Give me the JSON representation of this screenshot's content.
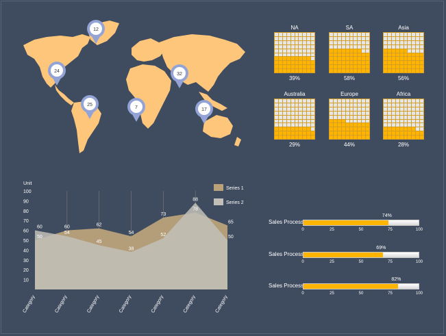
{
  "colors": {
    "background": "#3f4b5e",
    "continent": "#fdc67a",
    "pin": "#93a3d6",
    "waffle_on": "#ffb400",
    "waffle_off": "#e6e6e6",
    "series1": "#b9a27a",
    "series2": "#c2bfb9",
    "gauge_fill": "#ffb400"
  },
  "map": {
    "pins": [
      {
        "region": "north-america",
        "value": "24"
      },
      {
        "region": "greenland",
        "value": "12"
      },
      {
        "region": "south-america",
        "value": "25"
      },
      {
        "region": "africa",
        "value": "7"
      },
      {
        "region": "asia",
        "value": "32"
      },
      {
        "region": "australia",
        "value": "17"
      }
    ]
  },
  "waffles": [
    {
      "label": "NA",
      "percent_text": "39%",
      "fraction": 0.39
    },
    {
      "label": "SA",
      "percent_text": "58%",
      "fraction": 0.58
    },
    {
      "label": "Asia",
      "percent_text": "56%",
      "fraction": 0.56
    },
    {
      "label": "Australia",
      "percent_text": "29%",
      "fraction": 0.29
    },
    {
      "label": "Europe",
      "percent_text": "44%",
      "fraction": 0.44
    },
    {
      "label": "Africa",
      "percent_text": "28%",
      "fraction": 0.28
    }
  ],
  "chart_data": {
    "type": "area",
    "ylabel": "Unit",
    "ylim": [
      0,
      100
    ],
    "yticks": [
      10,
      20,
      30,
      40,
      50,
      60,
      70,
      80,
      90,
      100
    ],
    "categories": [
      "Category",
      "Category",
      "Category",
      "Category",
      "Category",
      "Category",
      "Category"
    ],
    "series": [
      {
        "name": "Series 1",
        "values": [
          50,
          60,
          62,
          54,
          73,
          78,
          65
        ]
      },
      {
        "name": "Series 2",
        "values": [
          60,
          54,
          45,
          38,
          52,
          88,
          50
        ]
      }
    ],
    "legend": "right",
    "grid": false
  },
  "gauges": [
    {
      "label": "Sales Process",
      "percent_text": "74%",
      "fraction": 0.74
    },
    {
      "label": "Sales Process",
      "percent_text": "69%",
      "fraction": 0.69
    },
    {
      "label": "Sales Process",
      "percent_text": "82%",
      "fraction": 0.82
    }
  ],
  "gauge_ticks": [
    "0",
    "25",
    "50",
    "75",
    "100"
  ]
}
